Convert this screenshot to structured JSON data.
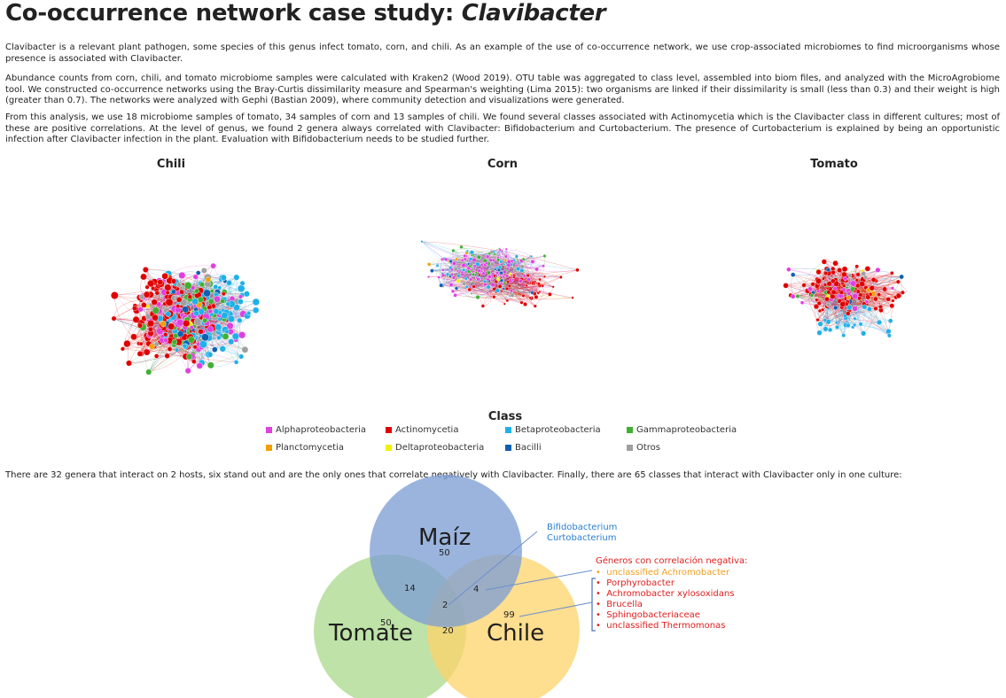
{
  "header": {
    "title_main": "Co-occurrence network case study: ",
    "title_italic": "Clavibacter"
  },
  "paragraphs": {
    "p1": "Clavibacter is a relevant plant pathogen, some species of this genus infect tomato, corn, and chili. As an example of the use of co-occurrence network, we use crop-associated microbiomes to find microorganisms whose presence is associated with Clavibacter.",
    "p2": "Abundance counts from corn, chili, and tomato microbiome samples were calculated with Kraken2 (Wood 2019). OTU table was aggregated to class level, assembled into biom files, and analyzed with the MicroAgrobiome tool. We constructed co-occurrence networks using the Bray-Curtis dissimilarity measure and Spearman's weighting (Lima 2015): two organisms are linked if their dissimilarity is small (less than 0.3) and their weight is high (greater than 0.7). The networks were analyzed with Gephi (Bastian 2009), where community detection and visualizations were generated.",
    "p3": "From this analysis, we use 18 microbiome samples of tomato, 34 samples of corn and 13 samples of chili. We found several classes associated with Actinomycetia which is the Clavibacter class in different cultures; most of these are positive correlations. At the level of genus, we found 2 genera always correlated with Clavibacter: Bifidobacterium and Curtobacterium. The presence of Curtobacterium is explained by being an opportunistic infection after Clavibacter infection in the plant. Evaluation with Bifidobacterium needs to be studied further."
  },
  "networks": {
    "chili_label": "Chili",
    "corn_label": "Corn",
    "tomato_label": "Tomato"
  },
  "legend": {
    "title": "Class",
    "items": [
      {
        "label": "Alphaproteobacteria",
        "color": "#e040e0"
      },
      {
        "label": "Actinomycetia",
        "color": "#e00000"
      },
      {
        "label": "Betaproteobacteria",
        "color": "#20b0e8"
      },
      {
        "label": "Gammaproteobacteria",
        "color": "#40b030"
      },
      {
        "label": "Planctomycetia",
        "color": "#f0a000"
      },
      {
        "label": "Deltaproteobacteria",
        "color": "#f0f000"
      },
      {
        "label": "Bacilli",
        "color": "#1060b0"
      },
      {
        "label": "Otros",
        "color": "#a0a0a0"
      }
    ]
  },
  "bottom_text": "There are 32 genera that interact on 2 hosts, six stand out and are the only ones that correlate negatively with Clavibacter. Finally, there are 65 classes that interact with Clavibacter only in one culture:",
  "venn": {
    "sets": {
      "maiz": {
        "label": "Maíz",
        "color": "#7f9fd4"
      },
      "tomate": {
        "label": "Tomate",
        "color": "#a8d88a"
      },
      "chile": {
        "label": "Chile",
        "color": "#fdd36a"
      }
    },
    "counts": {
      "maiz_only": "50",
      "tomate_only": "50",
      "chile_only": "99",
      "maiz_tomate": "14",
      "maiz_chile": "4",
      "tomate_chile": "20",
      "all": "2"
    },
    "annot_all": [
      "Bifidobacterium",
      "Curtobacterium"
    ],
    "annot_neg_title": "Géneros con correlación negativa:",
    "annot_neg_first": "unclassified Achromobacter",
    "annot_neg_list": [
      "Porphyrobacter",
      "Achromobacter xylosoxidans",
      "Brucella",
      "Sphingobacteriaceae",
      "unclassified Thermomonas"
    ]
  }
}
